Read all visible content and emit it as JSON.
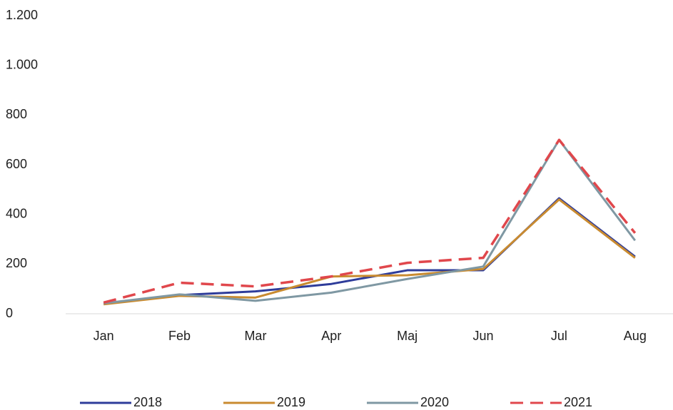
{
  "chart_data": {
    "type": "line",
    "categories": [
      "Jan",
      "Feb",
      "Mar",
      "Apr",
      "Maj",
      "Jun",
      "Jul",
      "Aug"
    ],
    "series": [
      {
        "name": "2018",
        "color": "#2e3c9a",
        "values": [
          40,
          75,
          90,
          120,
          175,
          175,
          465,
          230
        ]
      },
      {
        "name": "2019",
        "color": "#c98b30",
        "values": [
          38,
          72,
          65,
          150,
          155,
          180,
          460,
          225
        ]
      },
      {
        "name": "2020",
        "color": "#7f98a3",
        "values": [
          42,
          78,
          52,
          85,
          140,
          190,
          700,
          295
        ]
      },
      {
        "name": "2021",
        "color": "#e0474c",
        "dashed": true,
        "values": [
          45,
          125,
          110,
          150,
          205,
          225,
          700,
          325
        ]
      }
    ],
    "ylim": [
      0,
      1200
    ],
    "yticks": [
      0,
      200,
      400,
      600,
      800,
      {
        "value": 1000,
        "label": "1.000"
      },
      {
        "value": 1200,
        "label": "1.200"
      }
    ],
    "grid": false,
    "legend": "bottom"
  }
}
